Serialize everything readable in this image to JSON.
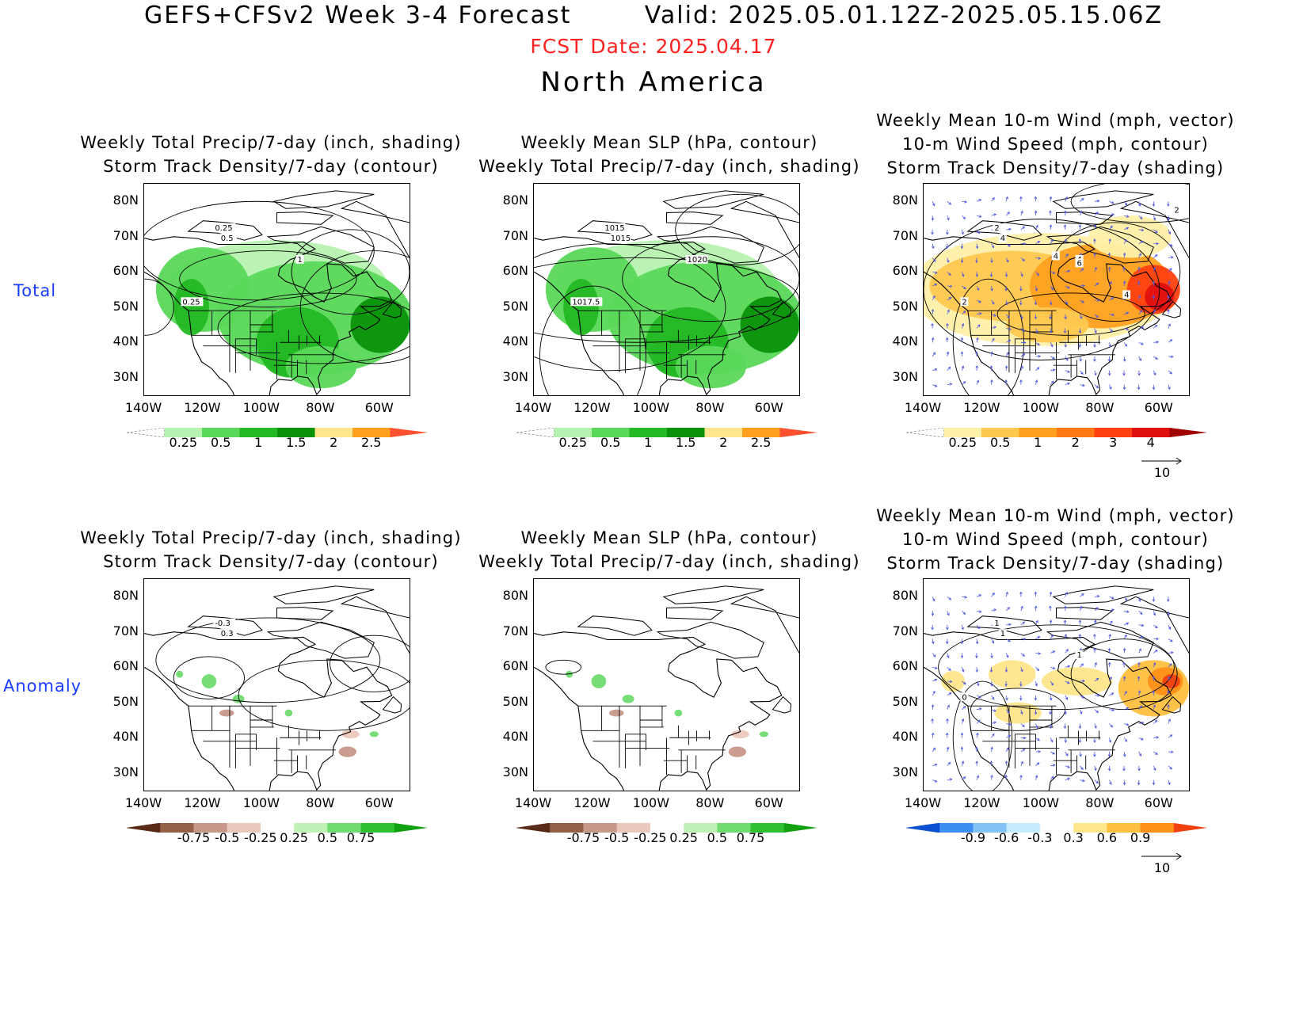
{
  "header": {
    "title": "GEFS+CFSv2 Week 3-4 Forecast        Valid: 2025.05.01.12Z-2025.05.15.06Z",
    "fcst_date": "FCST Date: 2025.04.17",
    "region": "North America"
  },
  "rows": {
    "total_label": "Total",
    "anomaly_label": "Anomaly"
  },
  "axes": {
    "lat_ticks": [
      "80N",
      "70N",
      "60N",
      "50N",
      "40N",
      "30N"
    ],
    "lon_ticks": [
      "140W",
      "120W",
      "100W",
      "80W",
      "60W"
    ]
  },
  "panels": [
    {
      "id": "total-precip-track",
      "row": "total",
      "title": [
        "Weekly Total Precip/7-day (inch, shading)",
        "Storm Track Density/7-day (contour)"
      ],
      "contour_labels": [
        "0.25",
        "0.5",
        "1",
        "0.25"
      ],
      "colorbar": {
        "ticks": [
          "0.25",
          "0.5",
          "1",
          "1.5",
          "2",
          "2.5"
        ],
        "colors": [
          "#ffffff",
          "#b6f2b0",
          "#5ad85a",
          "#24b824",
          "#0a920a",
          "#ffe68c",
          "#ffa020",
          "#ff5030"
        ]
      }
    },
    {
      "id": "total-slp-precip",
      "row": "total",
      "title": [
        "Weekly Mean SLP (hPa, contour)",
        "Weekly Total Precip/7-day (inch, shading)"
      ],
      "contour_labels": [
        "1015",
        "1015",
        "1020",
        "1017.5"
      ],
      "colorbar": {
        "ticks": [
          "0.25",
          "0.5",
          "1",
          "1.5",
          "2",
          "2.5"
        ],
        "colors": [
          "#ffffff",
          "#b6f2b0",
          "#5ad85a",
          "#24b824",
          "#0a920a",
          "#ffe68c",
          "#ffa020",
          "#ff5030"
        ]
      }
    },
    {
      "id": "total-wind-track",
      "row": "total",
      "title": [
        "Weekly Mean 10-m Wind (mph, vector)",
        "10-m Wind Speed (mph, contour)",
        "Storm Track Density/7-day (shading)"
      ],
      "contour_labels": [
        "2",
        "4",
        "4",
        "2",
        "2",
        "4",
        "4",
        "6"
      ],
      "colorbar": {
        "ticks": [
          "0.25",
          "0.5",
          "1",
          "2",
          "3",
          "4"
        ],
        "colors": [
          "#ffffff",
          "#fff0a8",
          "#ffc850",
          "#ffa020",
          "#ff7818",
          "#ff4010",
          "#e01010",
          "#a00000"
        ]
      },
      "vector_ref": "10"
    },
    {
      "id": "anom-precip-track",
      "row": "anomaly",
      "title": [
        "Weekly Total Precip/7-day (inch, shading)",
        "Storm Track Density/7-day (contour)"
      ],
      "contour_labels": [
        "-0.3",
        "0.3"
      ],
      "colorbar": {
        "ticks": [
          "-0.75",
          "-0.5",
          "-0.25",
          "0.25",
          "0.5",
          "0.75"
        ],
        "colors": [
          "#5a2a18",
          "#946048",
          "#c8988a",
          "#ecc8bc",
          "#ffffff",
          "#c0f2b8",
          "#70dc70",
          "#30c030",
          "#10a010"
        ]
      }
    },
    {
      "id": "anom-slp-precip",
      "row": "anomaly",
      "title": [
        "Weekly Mean SLP (hPa, contour)",
        "Weekly Total Precip/7-day (inch, shading)"
      ],
      "contour_labels": [],
      "colorbar": {
        "ticks": [
          "-0.75",
          "-0.5",
          "-0.25",
          "0.25",
          "0.5",
          "0.75"
        ],
        "colors": [
          "#5a2a18",
          "#946048",
          "#c8988a",
          "#ecc8bc",
          "#ffffff",
          "#c0f2b8",
          "#70dc70",
          "#30c030",
          "#10a010"
        ]
      }
    },
    {
      "id": "anom-wind-track",
      "row": "anomaly",
      "title": [
        "Weekly Mean 10-m Wind (mph, vector)",
        "10-m Wind Speed (mph, contour)",
        "Storm Track Density/7-day (shading)"
      ],
      "contour_labels": [
        "1",
        "1",
        "1",
        "0"
      ],
      "colorbar": {
        "ticks": [
          "-0.9",
          "-0.6",
          "-0.3",
          "0.3",
          "0.6",
          "0.9"
        ],
        "colors": [
          "#0a50d0",
          "#3c8ef0",
          "#82c4f8",
          "#c4ecfc",
          "#ffffff",
          "#ffe68c",
          "#ffc040",
          "#ff9018",
          "#f04010"
        ]
      },
      "vector_ref": "10"
    }
  ]
}
